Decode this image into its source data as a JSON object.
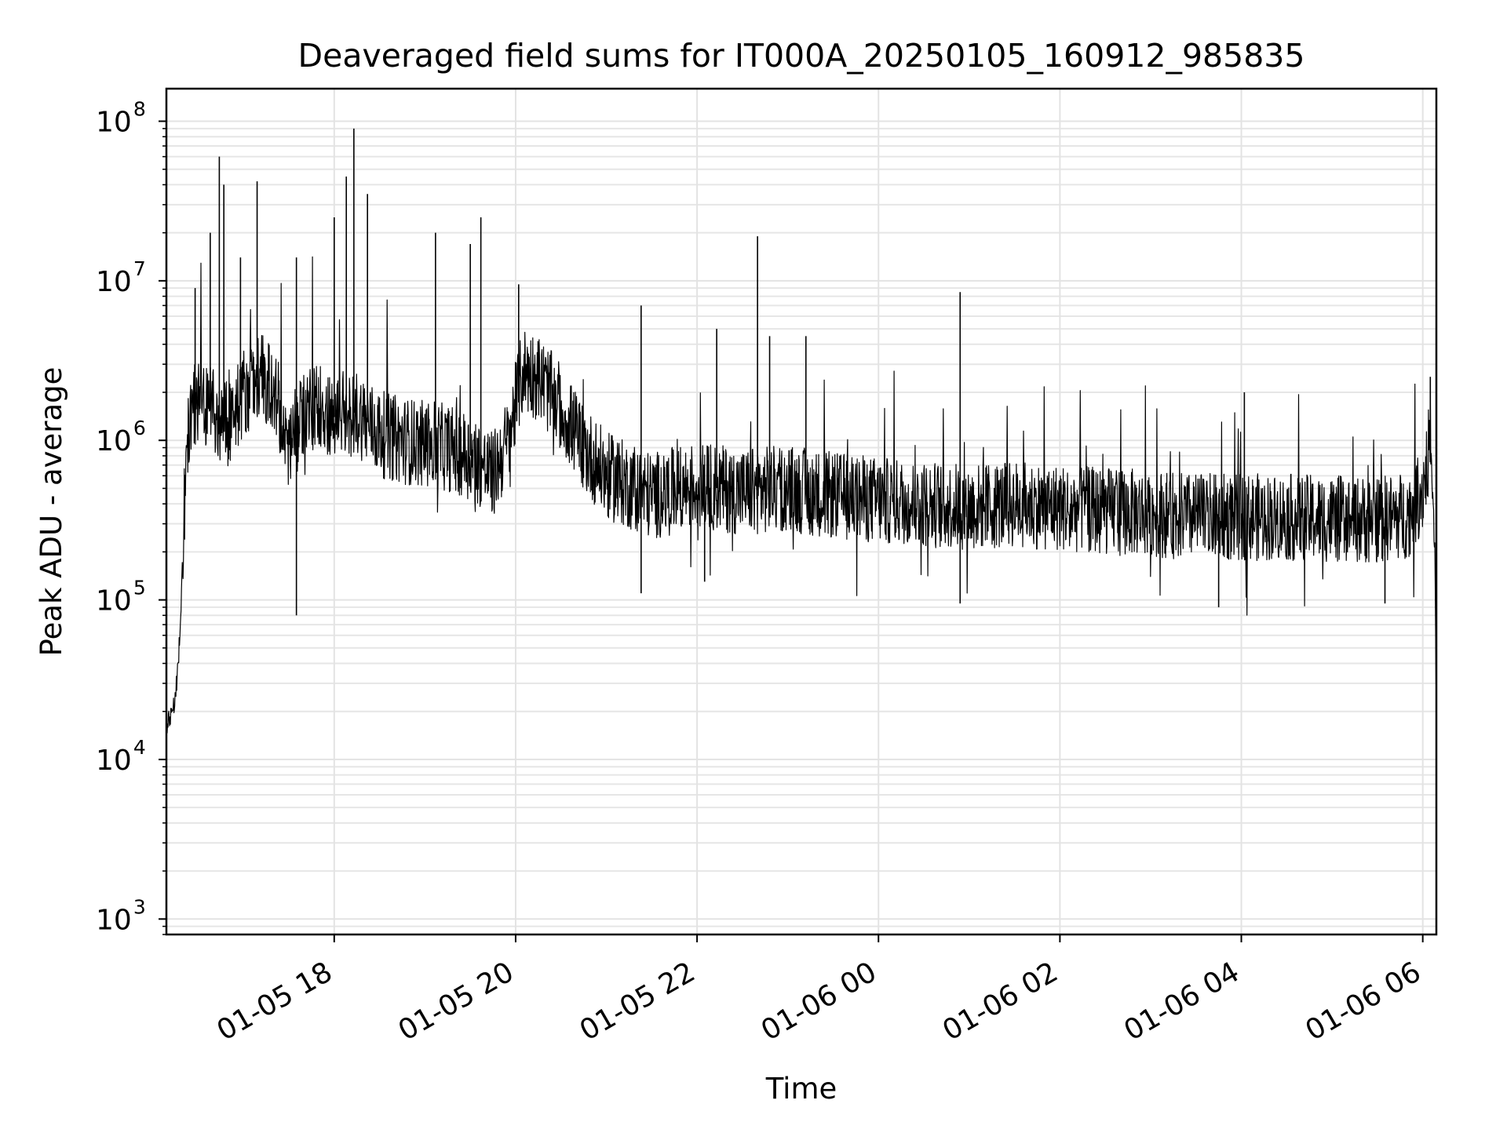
{
  "chart_data": {
    "type": "line",
    "title": "Deaveraged field sums for IT000A_20250105_160912_985835",
    "xlabel": "Time",
    "ylabel": "Peak ADU - average",
    "yscale": "log",
    "ylim": [
      800,
      160000000
    ],
    "xlim": [
      "2025-01-05 16:09",
      "2025-01-06 06:09"
    ],
    "grid": true,
    "x_tick_labels": [
      "01-05 18",
      "01-05 20",
      "01-05 22",
      "01-06 00",
      "01-06 02",
      "01-06 04",
      "01-06 06"
    ],
    "x_ticks": [
      "2025-01-05 18:00",
      "2025-01-05 20:00",
      "2025-01-05 22:00",
      "2025-01-06 00:00",
      "2025-01-06 02:00",
      "2025-01-06 04:00",
      "2025-01-06 06:00"
    ],
    "y_ticks": [
      1000,
      10000,
      100000,
      1000000,
      10000000,
      100000000
    ],
    "y_tick_labels": [
      {
        "base": "10",
        "exp": "3"
      },
      {
        "base": "10",
        "exp": "4"
      },
      {
        "base": "10",
        "exp": "5"
      },
      {
        "base": "10",
        "exp": "6"
      },
      {
        "base": "10",
        "exp": "7"
      },
      {
        "base": "10",
        "exp": "8"
      }
    ],
    "series": [
      {
        "color": "#000000",
        "x": [
          "2025-01-05 16:09",
          "2025-01-05 16:12",
          "2025-01-05 16:15",
          "2025-01-05 16:18",
          "2025-01-05 16:21",
          "2025-01-05 16:24",
          "2025-01-05 16:27",
          "2025-01-05 16:30",
          "2025-01-05 16:40",
          "2025-01-05 16:50",
          "2025-01-05 17:00",
          "2025-01-05 17:10",
          "2025-01-05 17:20",
          "2025-01-05 17:30",
          "2025-01-05 17:40",
          "2025-01-05 17:50",
          "2025-01-05 18:00",
          "2025-01-05 18:15",
          "2025-01-05 18:30",
          "2025-01-05 18:45",
          "2025-01-05 19:00",
          "2025-01-05 19:15",
          "2025-01-05 19:30",
          "2025-01-05 19:45",
          "2025-01-05 19:55",
          "2025-01-05 20:05",
          "2025-01-05 20:15",
          "2025-01-05 20:30",
          "2025-01-05 20:45",
          "2025-01-05 21:00",
          "2025-01-05 21:30",
          "2025-01-05 22:00",
          "2025-01-05 22:30",
          "2025-01-05 23:00",
          "2025-01-05 23:30",
          "2025-01-06 00:00",
          "2025-01-06 00:30",
          "2025-01-06 01:00",
          "2025-01-06 01:30",
          "2025-01-06 02:00",
          "2025-01-06 02:30",
          "2025-01-06 03:00",
          "2025-01-06 03:30",
          "2025-01-06 04:00",
          "2025-01-06 04:30",
          "2025-01-06 05:00",
          "2025-01-06 05:30",
          "2025-01-06 05:50",
          "2025-01-06 06:00",
          "2025-01-06 06:05",
          "2025-01-06 06:08",
          "2025-01-06 06:09"
        ],
        "y": [
          15000,
          20000,
          25000,
          60000,
          400000,
          1200000,
          1700000,
          1800000,
          1500000,
          1300000,
          2000000,
          2500000,
          2200000,
          900000,
          1500000,
          1700000,
          1400000,
          1500000,
          1100000,
          1000000,
          950000,
          900000,
          800000,
          600000,
          1000000,
          2800000,
          2500000,
          1600000,
          900000,
          600000,
          450000,
          520000,
          480000,
          500000,
          450000,
          420000,
          400000,
          380000,
          400000,
          380000,
          360000,
          350000,
          330000,
          330000,
          330000,
          320000,
          320000,
          340000,
          500000,
          1000000,
          200000,
          20000
        ]
      }
    ],
    "spikes": [
      {
        "x": "2025-01-05 16:28",
        "y": 9000000
      },
      {
        "x": "2025-01-05 16:38",
        "y": 20000000
      },
      {
        "x": "2025-01-05 16:44",
        "y": 60000000
      },
      {
        "x": "2025-01-05 16:47",
        "y": 40000000
      },
      {
        "x": "2025-01-05 16:58",
        "y": 14000000
      },
      {
        "x": "2025-01-05 17:09",
        "y": 42000000
      },
      {
        "x": "2025-01-05 17:35",
        "y": 14000000
      },
      {
        "x": "2025-01-05 18:00",
        "y": 25000000
      },
      {
        "x": "2025-01-05 18:08",
        "y": 45000000
      },
      {
        "x": "2025-01-05 18:13",
        "y": 90000000
      },
      {
        "x": "2025-01-05 18:22",
        "y": 35000000
      },
      {
        "x": "2025-01-05 19:07",
        "y": 20000000
      },
      {
        "x": "2025-01-05 19:30",
        "y": 17000000
      },
      {
        "x": "2025-01-05 19:37",
        "y": 25000000
      },
      {
        "x": "2025-01-05 20:02",
        "y": 9500000
      },
      {
        "x": "2025-01-05 21:23",
        "y": 7000000
      },
      {
        "x": "2025-01-05 22:13",
        "y": 5000000
      },
      {
        "x": "2025-01-05 22:40",
        "y": 19000000
      },
      {
        "x": "2025-01-05 22:48",
        "y": 4500000
      },
      {
        "x": "2025-01-05 23:12",
        "y": 4500000
      },
      {
        "x": "2025-01-06 00:54",
        "y": 8500000
      },
      {
        "x": "2025-01-06 04:02",
        "y": 2000000
      },
      {
        "x": "2025-01-06 06:05",
        "y": 2500000
      }
    ],
    "dips": [
      {
        "x": "2025-01-05 17:35",
        "y": 80000
      },
      {
        "x": "2025-01-05 21:23",
        "y": 110000
      },
      {
        "x": "2025-01-05 22:05",
        "y": 130000
      },
      {
        "x": "2025-01-06 00:54",
        "y": 95000
      },
      {
        "x": "2025-01-06 03:45",
        "y": 90000
      },
      {
        "x": "2025-01-06 05:35",
        "y": 95000
      }
    ]
  }
}
